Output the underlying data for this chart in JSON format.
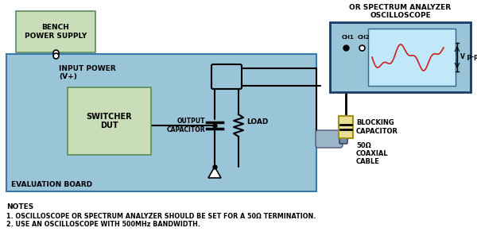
{
  "bg_color": "#ffffff",
  "eval_board_color": "#9ac4d8",
  "eval_board_edge": "#3a7aaa",
  "bench_ps_color": "#c8ddb8",
  "bench_ps_edge": "#5a8a5a",
  "switcher_color": "#c8ddb8",
  "switcher_edge": "#5a8a5a",
  "oscilloscope_color": "#9ac4d8",
  "oscilloscope_edge": "#1a3a6a",
  "screen_color": "#c0e8f8",
  "wave_color": "#cc2020",
  "blocking_cap_color": "#e8e090",
  "blocking_cap_edge": "#a09020",
  "coax_body_color": "#9ab4c8",
  "coax_tip_color": "#7090a8",
  "line_color": "#000000",
  "bench_ps_label": "BENCH\nPOWER SUPPLY",
  "switcher_label": "SWITCHER\nDUT",
  "output_cap_label": "OUTPUT\nCAPACITOR",
  "load_label": "LOAD",
  "eval_board_label": "EVALUATION BOARD",
  "input_power_label1": "INPUT POWER",
  "input_power_label2": "(V+)",
  "osc_title1": "OSCILLOSCOPE",
  "osc_title2": "OR SPECTRUM ANALYZER",
  "ch1_label": "CH1",
  "ch2_label": "CH2",
  "vpp_label": "V p-p",
  "blocking_cap_label": "BLOCKING\nCAPACITOR",
  "coax_label1": "50Ω",
  "coax_label2": "COAXIAL",
  "coax_label3": "CABLE",
  "notes1": "NOTES",
  "notes2": "1. OSCILLOSCOPE OR SPECTRUM ANALYZER SHOULD BE SET FOR A 50Ω TERMINATION.",
  "notes3": "2. USE AN OSCILLOSCOPE WITH 500MHz BANDWIDTH."
}
